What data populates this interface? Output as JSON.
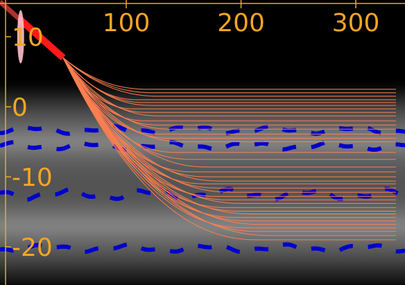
{
  "chart_data": {
    "type": "line",
    "title": "",
    "xlabel": "",
    "ylabel": "",
    "xlim": [
      -10,
      345
    ],
    "ylim": [
      -25.5,
      15
    ],
    "x_ticks": [
      100,
      200,
      300
    ],
    "x_tick_labels": [
      "100",
      "200",
      "300"
    ],
    "y_ticks": [
      10,
      0,
      -10,
      -20
    ],
    "y_tick_labels": [
      "10",
      "0",
      "-10",
      "-20"
    ],
    "grid": false,
    "legend": "none",
    "colors": {
      "axis": "#f5a623",
      "trajectories": "#ff7f50",
      "initial_segment": "#ff1a1a",
      "initial_segment_dark": "#b03030",
      "dashed_bands": "#0000cc",
      "ellipse": "#ffc0cb",
      "background_dark": "#000000",
      "background_light": "#ffffff"
    },
    "background_density": {
      "center_y": [
        -5,
        -17
      ],
      "spread": [
        3.2,
        3.5
      ],
      "note_free": true
    },
    "initial_segment": {
      "x": [
        -10,
        45
      ],
      "y": [
        15,
        7
      ]
    },
    "ellipse": {
      "cx": 8,
      "cy": 10,
      "rx": 2,
      "ry": 3.8
    },
    "dashed_lines": [
      {
        "y": -3.3,
        "amp": 0.35
      },
      {
        "y": -5.6,
        "amp": 0.35
      },
      {
        "y": -12.5,
        "amp": 0.5
      },
      {
        "y": -20.2,
        "amp": 0.35
      }
    ],
    "trajectories": {
      "start": {
        "x": 45,
        "y": 7
      },
      "end_x": 335,
      "finals": [
        2.5,
        2.0,
        1.5,
        1.0,
        0.6,
        0.2,
        -0.3,
        -0.8,
        -1.3,
        -2.0,
        -2.6,
        -3.2,
        -3.9,
        -4.5,
        -5.0,
        -6.5,
        -7.5,
        -8.6,
        -9.3,
        -10.0,
        -10.6,
        -11.0,
        -11.6,
        -12.2,
        -12.8,
        -13.3,
        -13.8,
        -14.4,
        -14.9,
        -15.3,
        -15.8,
        -16.3,
        -16.8,
        -17.3,
        -17.8,
        -18.4,
        -19.0
      ]
    }
  }
}
